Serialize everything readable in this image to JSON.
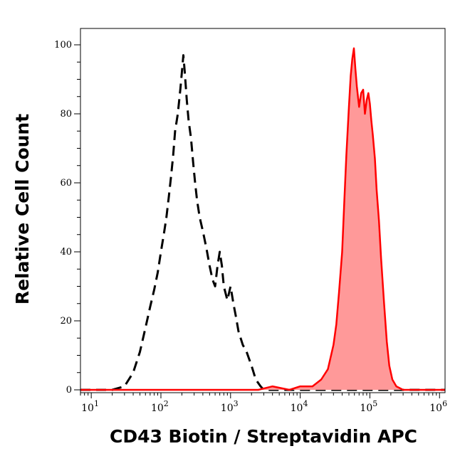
{
  "chart_data": {
    "type": "area",
    "xscale": "log",
    "xlim": [
      7,
      1200000
    ],
    "ylim": [
      0,
      105
    ],
    "xlabel": "CD43 Biotin / Streptavidin APC",
    "ylabel": "Relative Cell Count",
    "grid": false,
    "legend": "none",
    "yticks": [
      0,
      20,
      40,
      60,
      80,
      100
    ],
    "xticks": [
      {
        "value": 10,
        "base": "10",
        "exp": "1"
      },
      {
        "value": 100,
        "base": "10",
        "exp": "2"
      },
      {
        "value": 1000,
        "base": "10",
        "exp": "3"
      },
      {
        "value": 10000,
        "base": "10",
        "exp": "4"
      },
      {
        "value": 100000,
        "base": "10",
        "exp": "5"
      },
      {
        "value": 1000000,
        "base": "10",
        "exp": "6"
      }
    ],
    "series": [
      {
        "style": "dashed",
        "color": "#000000",
        "fill": "none",
        "points": [
          [
            7,
            0
          ],
          [
            20,
            0
          ],
          [
            30,
            1
          ],
          [
            40,
            5
          ],
          [
            50,
            11
          ],
          [
            60,
            18
          ],
          [
            70,
            24
          ],
          [
            80,
            29
          ],
          [
            90,
            34
          ],
          [
            100,
            40
          ],
          [
            110,
            45
          ],
          [
            120,
            50
          ],
          [
            130,
            56
          ],
          [
            140,
            62
          ],
          [
            150,
            68
          ],
          [
            160,
            75
          ],
          [
            175,
            80
          ],
          [
            190,
            87
          ],
          [
            200,
            92
          ],
          [
            210,
            97
          ],
          [
            220,
            92
          ],
          [
            235,
            84
          ],
          [
            250,
            78
          ],
          [
            270,
            73
          ],
          [
            290,
            66
          ],
          [
            310,
            60
          ],
          [
            330,
            55
          ],
          [
            360,
            50
          ],
          [
            400,
            46
          ],
          [
            450,
            41
          ],
          [
            500,
            36
          ],
          [
            550,
            32
          ],
          [
            600,
            30
          ],
          [
            650,
            36
          ],
          [
            700,
            40
          ],
          [
            750,
            36
          ],
          [
            800,
            30
          ],
          [
            900,
            26
          ],
          [
            1000,
            30
          ],
          [
            1100,
            25
          ],
          [
            1200,
            21
          ],
          [
            1300,
            17
          ],
          [
            1500,
            13
          ],
          [
            1700,
            11
          ],
          [
            2000,
            7
          ],
          [
            2300,
            3
          ],
          [
            2700,
            1
          ],
          [
            3000,
            0
          ],
          [
            1200000,
            0
          ]
        ]
      },
      {
        "style": "solid",
        "color": "#ff0000",
        "fill": "#ff9999",
        "points": [
          [
            7,
            0
          ],
          [
            2500,
            0
          ],
          [
            4000,
            1
          ],
          [
            7000,
            0
          ],
          [
            10000,
            1
          ],
          [
            15000,
            1
          ],
          [
            20000,
            3
          ],
          [
            25000,
            6
          ],
          [
            30000,
            13
          ],
          [
            33000,
            19
          ],
          [
            36000,
            28
          ],
          [
            40000,
            40
          ],
          [
            43000,
            55
          ],
          [
            46000,
            68
          ],
          [
            50000,
            82
          ],
          [
            53000,
            91
          ],
          [
            56000,
            96
          ],
          [
            59000,
            99
          ],
          [
            62000,
            93
          ],
          [
            65000,
            88
          ],
          [
            70000,
            82
          ],
          [
            75000,
            86
          ],
          [
            80000,
            87
          ],
          [
            85000,
            80
          ],
          [
            90000,
            84
          ],
          [
            95000,
            86
          ],
          [
            100000,
            83
          ],
          [
            105000,
            78
          ],
          [
            110000,
            74
          ],
          [
            118000,
            67
          ],
          [
            125000,
            58
          ],
          [
            135000,
            49
          ],
          [
            145000,
            38
          ],
          [
            160000,
            25
          ],
          [
            175000,
            14
          ],
          [
            190000,
            7
          ],
          [
            210000,
            3
          ],
          [
            240000,
            1
          ],
          [
            300000,
            0
          ],
          [
            1200000,
            0
          ]
        ]
      }
    ]
  }
}
